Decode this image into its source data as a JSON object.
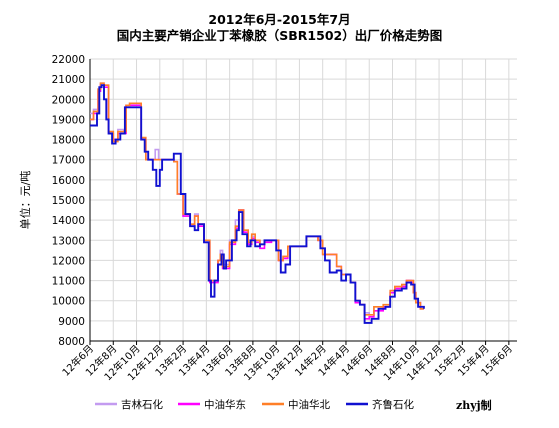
{
  "chart_data": {
    "type": "line",
    "title": "2012年6月-2015年7月",
    "subtitle": "国内主要产销企业丁苯橡胶（SBR1502）出厂价格走势图",
    "ylabel": "单位：元/吨",
    "xlabel": "",
    "ylim": [
      8000,
      22000
    ],
    "yticks": [
      8000,
      9000,
      10000,
      11000,
      12000,
      13000,
      14000,
      15000,
      16000,
      17000,
      18000,
      19000,
      20000,
      21000,
      22000
    ],
    "x_tick_labels": [
      "12年6月",
      "12年8月",
      "12年10月",
      "12年12月",
      "13年2月",
      "13年4月",
      "13年6月",
      "13年8月",
      "13年10月",
      "13年12月",
      "14年2月",
      "14年4月",
      "14年6月",
      "14年8月",
      "14年10月",
      "14年12月",
      "15年2月",
      "15年4月",
      "15年6月"
    ],
    "grid": true,
    "legend_position": "bottom",
    "credit": "zhyj制",
    "series": [
      {
        "name": "吉林石化",
        "color": "#c39bf0",
        "points": [
          [
            0,
            19300
          ],
          [
            0.15,
            19500
          ],
          [
            0.35,
            20500
          ],
          [
            0.45,
            20800
          ],
          [
            0.6,
            20700
          ],
          [
            0.8,
            18400
          ],
          [
            1,
            18000
          ],
          [
            1.2,
            18500
          ],
          [
            1.45,
            18400
          ],
          [
            1.55,
            19700
          ],
          [
            1.7,
            19800
          ],
          [
            2.1,
            19800
          ],
          [
            2.2,
            18000
          ],
          [
            2.4,
            17000
          ],
          [
            2.65,
            17000
          ],
          [
            2.8,
            17500
          ],
          [
            2.95,
            17000
          ],
          [
            3.25,
            17000
          ],
          [
            3.6,
            16900
          ],
          [
            3.75,
            15300
          ],
          [
            4,
            14200
          ],
          [
            4.3,
            13800
          ],
          [
            4.5,
            14300
          ],
          [
            4.65,
            13800
          ],
          [
            4.9,
            13000
          ],
          [
            5.15,
            11000
          ],
          [
            5.5,
            12000
          ],
          [
            5.6,
            12500
          ],
          [
            5.7,
            11800
          ],
          [
            6,
            13000
          ],
          [
            6.25,
            14000
          ],
          [
            6.4,
            14500
          ],
          [
            6.6,
            13500
          ],
          [
            6.8,
            13000
          ],
          [
            6.95,
            13200
          ],
          [
            7.1,
            13000
          ],
          [
            7.3,
            12800
          ],
          [
            7.5,
            13000
          ],
          [
            7.8,
            13000
          ],
          [
            8.1,
            12000
          ],
          [
            8.3,
            12200
          ],
          [
            8.5,
            12700
          ],
          [
            9.1,
            12700
          ],
          [
            9.3,
            13200
          ],
          [
            9.8,
            13000
          ],
          [
            10,
            12300
          ],
          [
            10.6,
            11700
          ],
          [
            10.8,
            11300
          ],
          [
            11,
            11300
          ],
          [
            11.2,
            10900
          ],
          [
            11.4,
            10000
          ],
          [
            11.6,
            9800
          ],
          [
            11.8,
            9400
          ],
          [
            12,
            9300
          ],
          [
            12.2,
            9700
          ],
          [
            12.6,
            9700
          ],
          [
            12.9,
            10400
          ],
          [
            13.1,
            10700
          ],
          [
            13.4,
            10800
          ],
          [
            13.6,
            11000
          ],
          [
            13.8,
            11000
          ],
          [
            13.9,
            10400
          ],
          [
            14,
            9900
          ],
          [
            14.2,
            9600
          ],
          [
            14.35,
            9600
          ]
        ]
      },
      {
        "name": "中油华东",
        "color": "#ff00ff",
        "points": [
          [
            0,
            19000
          ],
          [
            0.15,
            19300
          ],
          [
            0.35,
            20400
          ],
          [
            0.45,
            20700
          ],
          [
            0.6,
            20600
          ],
          [
            0.8,
            18300
          ],
          [
            1,
            18000
          ],
          [
            1.2,
            18300
          ],
          [
            1.45,
            18300
          ],
          [
            1.55,
            19700
          ],
          [
            1.7,
            19700
          ],
          [
            2.1,
            19700
          ],
          [
            2.2,
            18000
          ],
          [
            2.4,
            17000
          ],
          [
            2.65,
            17000
          ],
          [
            2.8,
            17000
          ],
          [
            2.95,
            17000
          ],
          [
            3.25,
            17000
          ],
          [
            3.6,
            16900
          ],
          [
            3.75,
            15300
          ],
          [
            4,
            14200
          ],
          [
            4.3,
            13700
          ],
          [
            4.5,
            14200
          ],
          [
            4.65,
            13700
          ],
          [
            4.9,
            12900
          ],
          [
            5.15,
            10900
          ],
          [
            5.5,
            12000
          ],
          [
            5.6,
            12300
          ],
          [
            5.7,
            11600
          ],
          [
            6,
            12800
          ],
          [
            6.25,
            13600
          ],
          [
            6.4,
            14500
          ],
          [
            6.6,
            13400
          ],
          [
            6.8,
            12800
          ],
          [
            6.95,
            13100
          ],
          [
            7.1,
            12900
          ],
          [
            7.3,
            12600
          ],
          [
            7.5,
            12900
          ],
          [
            7.8,
            13000
          ],
          [
            8.1,
            12000
          ],
          [
            8.3,
            12100
          ],
          [
            8.5,
            12700
          ],
          [
            9.1,
            12700
          ],
          [
            9.3,
            13200
          ],
          [
            9.8,
            13000
          ],
          [
            10,
            12300
          ],
          [
            10.6,
            11700
          ],
          [
            10.8,
            11300
          ],
          [
            11,
            11300
          ],
          [
            11.2,
            10900
          ],
          [
            11.4,
            9900
          ],
          [
            11.6,
            9800
          ],
          [
            11.8,
            9100
          ],
          [
            12,
            9200
          ],
          [
            12.2,
            9500
          ],
          [
            12.6,
            9700
          ],
          [
            12.9,
            10400
          ],
          [
            13.1,
            10600
          ],
          [
            13.4,
            10700
          ],
          [
            13.6,
            11000
          ],
          [
            13.8,
            10900
          ],
          [
            13.9,
            10400
          ],
          [
            14,
            9900
          ],
          [
            14.2,
            9600
          ],
          [
            14.35,
            9600
          ]
        ]
      },
      {
        "name": "中油华北",
        "color": "#ff7f27",
        "points": [
          [
            0,
            19000
          ],
          [
            0.15,
            19400
          ],
          [
            0.35,
            20500
          ],
          [
            0.45,
            20800
          ],
          [
            0.6,
            20700
          ],
          [
            0.8,
            18400
          ],
          [
            1,
            17900
          ],
          [
            1.2,
            18400
          ],
          [
            1.45,
            18400
          ],
          [
            1.55,
            19700
          ],
          [
            1.7,
            19800
          ],
          [
            2.1,
            19800
          ],
          [
            2.2,
            18100
          ],
          [
            2.4,
            17000
          ],
          [
            2.65,
            17000
          ],
          [
            2.8,
            17000
          ],
          [
            2.95,
            17000
          ],
          [
            3.25,
            17000
          ],
          [
            3.6,
            16900
          ],
          [
            3.75,
            15300
          ],
          [
            4,
            14300
          ],
          [
            4.3,
            13800
          ],
          [
            4.5,
            14200
          ],
          [
            4.65,
            13800
          ],
          [
            4.9,
            13000
          ],
          [
            5.15,
            11000
          ],
          [
            5.5,
            12000
          ],
          [
            5.6,
            12300
          ],
          [
            5.7,
            11700
          ],
          [
            6,
            12900
          ],
          [
            6.25,
            13700
          ],
          [
            6.4,
            14500
          ],
          [
            6.6,
            13500
          ],
          [
            6.8,
            12900
          ],
          [
            6.95,
            13300
          ],
          [
            7.1,
            13000
          ],
          [
            7.3,
            12800
          ],
          [
            7.5,
            13000
          ],
          [
            7.8,
            13000
          ],
          [
            8.1,
            12000
          ],
          [
            8.3,
            12200
          ],
          [
            8.5,
            12700
          ],
          [
            9.1,
            12700
          ],
          [
            9.3,
            13200
          ],
          [
            9.8,
            13000
          ],
          [
            10,
            12300
          ],
          [
            10.6,
            11700
          ],
          [
            10.8,
            11300
          ],
          [
            11,
            11300
          ],
          [
            11.2,
            10900
          ],
          [
            11.4,
            10000
          ],
          [
            11.6,
            9800
          ],
          [
            11.8,
            9300
          ],
          [
            12,
            9300
          ],
          [
            12.2,
            9700
          ],
          [
            12.6,
            9800
          ],
          [
            12.9,
            10500
          ],
          [
            13.1,
            10700
          ],
          [
            13.4,
            10800
          ],
          [
            13.6,
            11000
          ],
          [
            13.8,
            11000
          ],
          [
            13.9,
            10400
          ],
          [
            14,
            9900
          ],
          [
            14.2,
            9600
          ],
          [
            14.35,
            9600
          ]
        ]
      },
      {
        "name": "齐鲁石化",
        "color": "#1010d0",
        "points": [
          [
            0,
            18700
          ],
          [
            0.15,
            18700
          ],
          [
            0.3,
            19300
          ],
          [
            0.4,
            20600
          ],
          [
            0.5,
            20700
          ],
          [
            0.6,
            20000
          ],
          [
            0.7,
            19000
          ],
          [
            0.8,
            18300
          ],
          [
            0.95,
            17800
          ],
          [
            1.1,
            18000
          ],
          [
            1.3,
            18300
          ],
          [
            1.5,
            19600
          ],
          [
            2.1,
            19600
          ],
          [
            2.2,
            18000
          ],
          [
            2.35,
            17400
          ],
          [
            2.5,
            17000
          ],
          [
            2.7,
            16500
          ],
          [
            2.85,
            15700
          ],
          [
            3.0,
            16500
          ],
          [
            3.1,
            17000
          ],
          [
            3.4,
            17000
          ],
          [
            3.6,
            17300
          ],
          [
            3.8,
            17300
          ],
          [
            3.9,
            15300
          ],
          [
            4.1,
            14300
          ],
          [
            4.3,
            13700
          ],
          [
            4.5,
            13500
          ],
          [
            4.65,
            13800
          ],
          [
            4.9,
            12900
          ],
          [
            5.1,
            11000
          ],
          [
            5.2,
            10200
          ],
          [
            5.35,
            11000
          ],
          [
            5.5,
            11800
          ],
          [
            5.65,
            12300
          ],
          [
            5.75,
            11600
          ],
          [
            5.85,
            12000
          ],
          [
            6.1,
            13000
          ],
          [
            6.3,
            13500
          ],
          [
            6.4,
            14400
          ],
          [
            6.55,
            13300
          ],
          [
            6.75,
            12700
          ],
          [
            6.9,
            13000
          ],
          [
            7.1,
            12700
          ],
          [
            7.3,
            12800
          ],
          [
            7.5,
            13000
          ],
          [
            7.8,
            13000
          ],
          [
            8.0,
            12500
          ],
          [
            8.2,
            11400
          ],
          [
            8.4,
            11800
          ],
          [
            8.6,
            12700
          ],
          [
            9.1,
            12700
          ],
          [
            9.3,
            13200
          ],
          [
            9.6,
            13200
          ],
          [
            9.9,
            12600
          ],
          [
            10.1,
            12000
          ],
          [
            10.3,
            11400
          ],
          [
            10.6,
            11500
          ],
          [
            10.8,
            11000
          ],
          [
            11.0,
            11300
          ],
          [
            11.2,
            10900
          ],
          [
            11.4,
            10000
          ],
          [
            11.6,
            9800
          ],
          [
            11.8,
            8900
          ],
          [
            12.1,
            9100
          ],
          [
            12.4,
            9600
          ],
          [
            12.7,
            9700
          ],
          [
            12.9,
            10200
          ],
          [
            13.1,
            10500
          ],
          [
            13.4,
            10600
          ],
          [
            13.6,
            10900
          ],
          [
            13.8,
            10800
          ],
          [
            13.95,
            10100
          ],
          [
            14.1,
            9700
          ],
          [
            14.35,
            9600
          ]
        ]
      }
    ]
  }
}
